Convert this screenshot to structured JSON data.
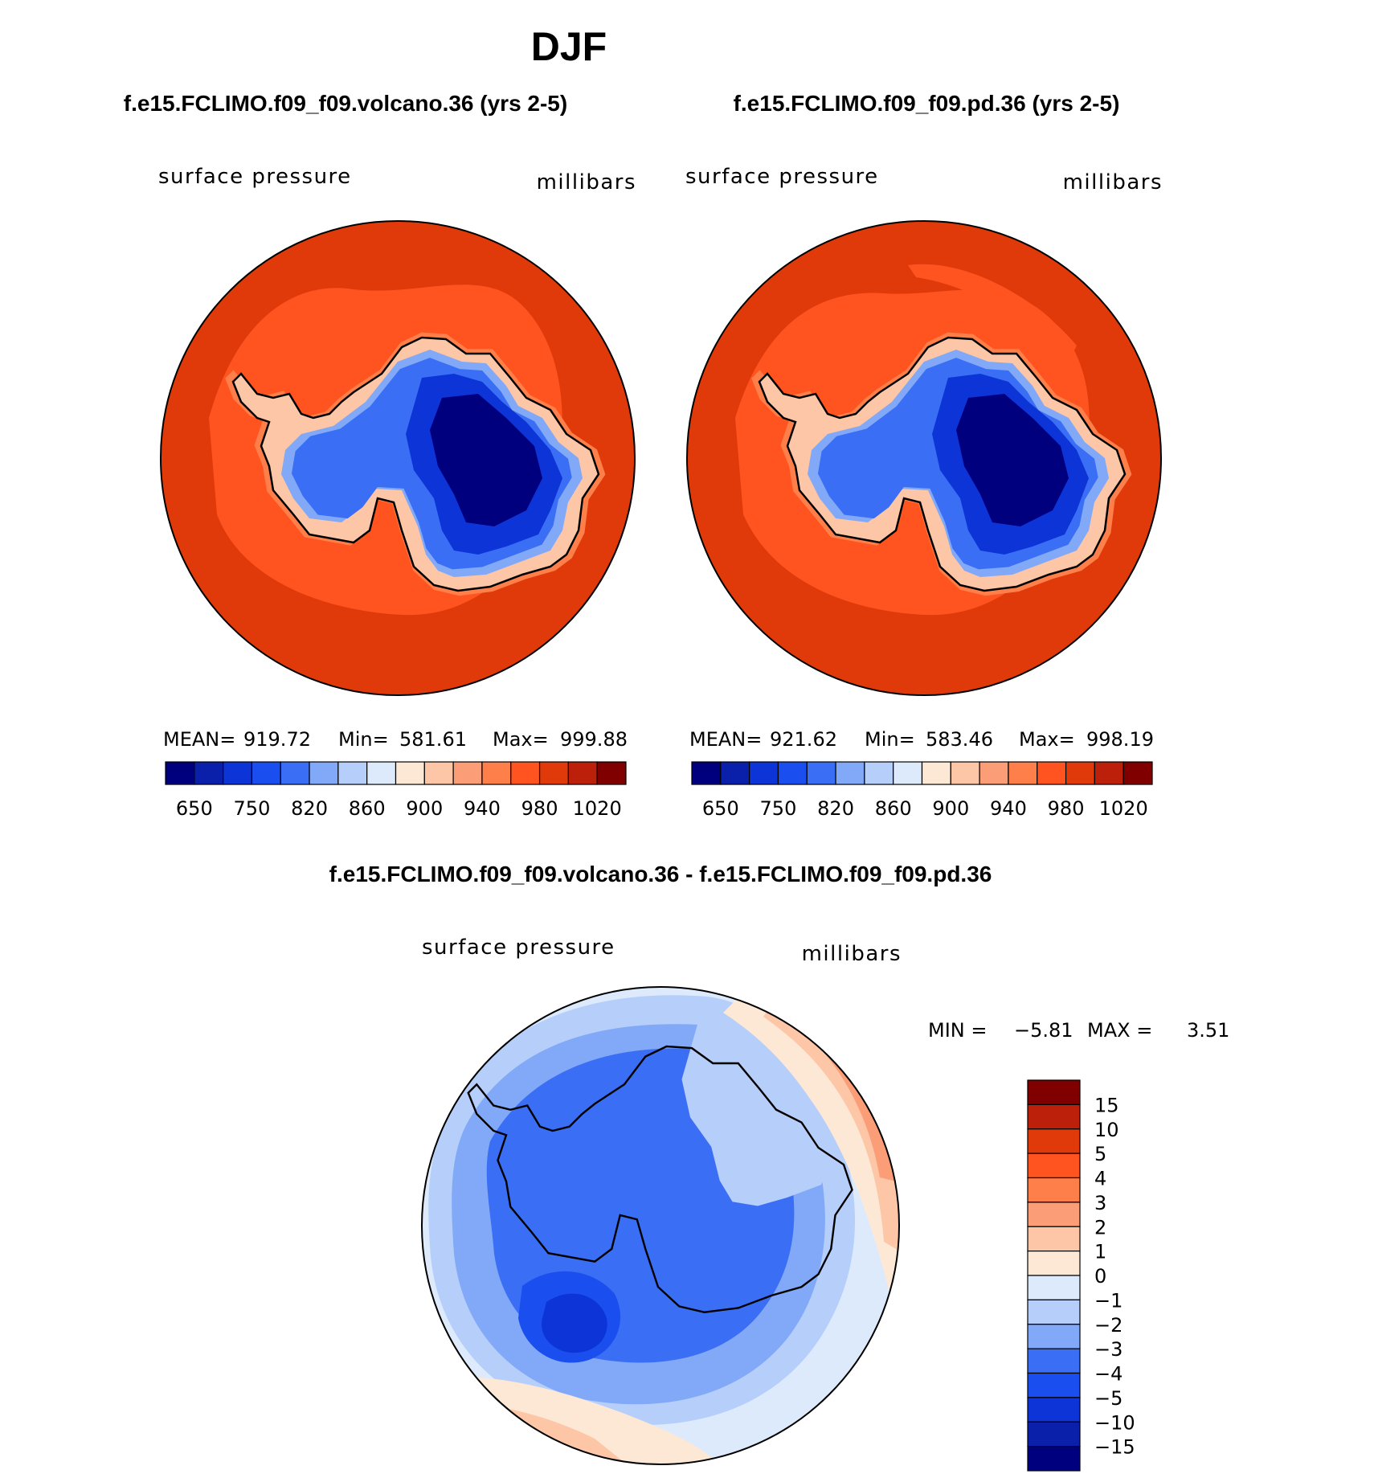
{
  "title": "DJF",
  "colors": {
    "ocean_dark": "#E03A0B",
    "ocean_mid": "#FF5420",
    "ocean_light": "#FF7F4A",
    "diff_base": "#CFE2FA",
    "outline": "#000000"
  },
  "panels": [
    {
      "case": "f.e15.FCLIMO.f09_f09.volcano.36 (yrs 2-5)",
      "variable": "surface pressure",
      "units": "millibars",
      "stats": {
        "mean_label": "MEAN=",
        "mean": "919.72",
        "min_label": "Min=",
        "min": "581.61",
        "max_label": "Max=",
        "max": "999.88"
      }
    },
    {
      "case": "f.e15.FCLIMO.f09_f09.pd.36 (yrs 2-5)",
      "variable": "surface pressure",
      "units": "millibars",
      "stats": {
        "mean_label": "MEAN=",
        "mean": "921.62",
        "min_label": "Min=",
        "min": "583.46",
        "max_label": "Max=",
        "max": "998.19"
      }
    }
  ],
  "abs_colorbar": {
    "colors": [
      "#00007F",
      "#0A1FAA",
      "#0D34D6",
      "#1A4EEE",
      "#3A6EF5",
      "#82A9F7",
      "#B6CEFA",
      "#DCEAFC",
      "#FDE8D6",
      "#FDC6A7",
      "#FB9E78",
      "#FF7F4A",
      "#FF5420",
      "#E03A0B",
      "#BC200A",
      "#800000"
    ],
    "tick_labels": [
      "650",
      "750",
      "820",
      "860",
      "900",
      "940",
      "980",
      "1020"
    ]
  },
  "diff_panel": {
    "title": "f.e15.FCLIMO.f09_f09.volcano.36 - f.e15.FCLIMO.f09_f09.pd.36",
    "variable": "surface pressure",
    "units": "millibars",
    "min_label": "MIN =",
    "min": "−5.81",
    "max_label": "MAX =",
    "max": "3.51",
    "colorbar": {
      "colors_top_to_bottom": [
        "#800000",
        "#BC200A",
        "#E03A0B",
        "#FF5420",
        "#FF7F4A",
        "#FB9E78",
        "#FDC6A7",
        "#FDE8D6",
        "#DCEAFC",
        "#B6CEFA",
        "#82A9F7",
        "#3A6EF5",
        "#1A4EEE",
        "#0D34D6",
        "#0A1FAA",
        "#00007F"
      ],
      "tick_labels": [
        "15",
        "10",
        "5",
        "4",
        "3",
        "2",
        "1",
        "0",
        "−1",
        "−2",
        "−3",
        "−4",
        "−5",
        "−10",
        "−15"
      ]
    }
  }
}
